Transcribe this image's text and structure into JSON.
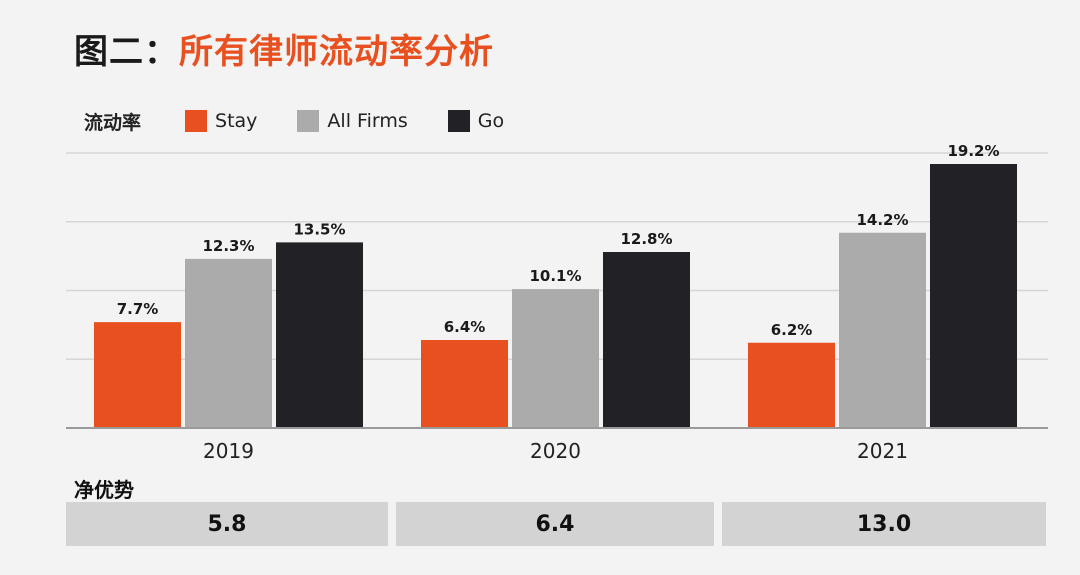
{
  "title_prefix": "图二：",
  "title_main": "所有律师流动率分析",
  "legend_label": "流动率",
  "net_label": "净优势",
  "net_values": [
    "5.8",
    "6.4",
    "13.0"
  ],
  "colors": {
    "Stay": "#e8511f",
    "All Firms": "#ababab",
    "Go": "#222226",
    "grid": "#d6d6d6",
    "axis": "#9a9a9a"
  },
  "chart_data": {
    "type": "bar",
    "categories": [
      "2019",
      "2020",
      "2021"
    ],
    "series": [
      {
        "name": "Stay",
        "values": [
          7.7,
          6.4,
          6.2
        ],
        "labels": [
          "7.7%",
          "6.4%",
          "6.2%"
        ]
      },
      {
        "name": "All Firms",
        "values": [
          12.3,
          10.1,
          14.2
        ],
        "labels": [
          "12.3%",
          "10.1%",
          "14.2%"
        ]
      },
      {
        "name": "Go",
        "values": [
          13.5,
          12.8,
          19.2
        ],
        "labels": [
          "13.5%",
          "12.8%",
          "19.2%"
        ]
      }
    ],
    "ylim": [
      0,
      20
    ],
    "grid": true,
    "legend": "top-left"
  }
}
